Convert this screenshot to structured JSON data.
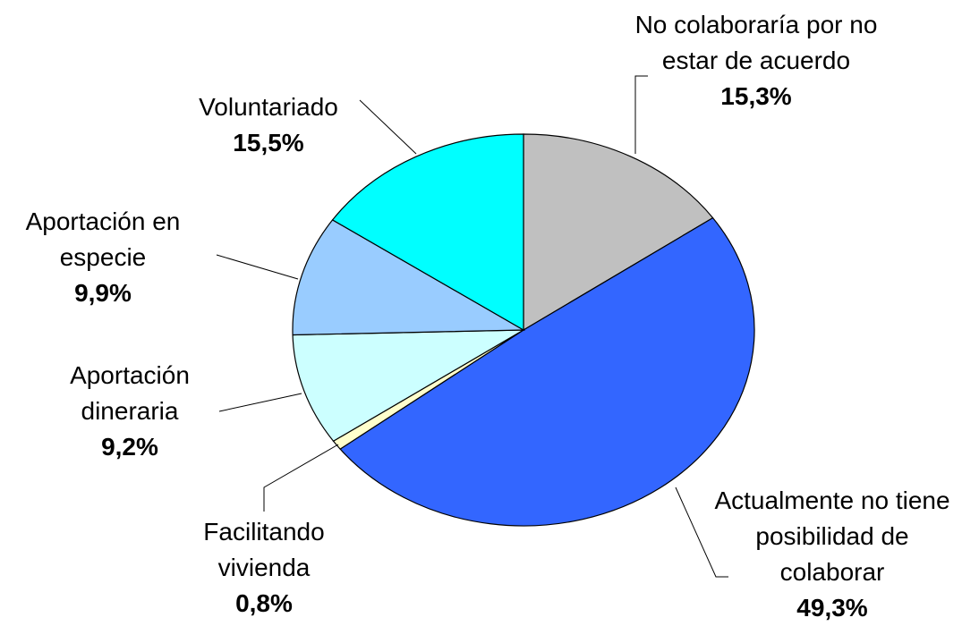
{
  "chart_data": {
    "type": "pie",
    "categories": [
      "No colaboraría por no estar de acuerdo",
      "Actualmente no tiene posibilidad de colaborar",
      "Facilitando vivienda",
      "Aportación dineraria",
      "Aportación en especie",
      "Voluntariado"
    ],
    "values": [
      15.3,
      49.3,
      0.8,
      9.2,
      9.9,
      15.5
    ],
    "value_labels": [
      "15,3%",
      "49,3%",
      "0,8%",
      "9,2%",
      "9,9%",
      "15,5%"
    ],
    "colors": [
      "#c0c0c0",
      "#3366ff",
      "#ffffcc",
      "#ccffff",
      "#99ccff",
      "#00ffff"
    ]
  }
}
